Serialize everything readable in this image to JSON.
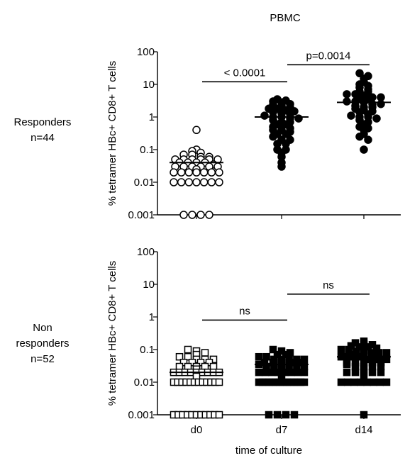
{
  "chart_data": {
    "title": "PBMC",
    "xlabel": "time of culture",
    "type": "scatter",
    "categories": [
      "d0",
      "d7",
      "d14"
    ],
    "panels": [
      {
        "group_label": [
          "Responders",
          "n=44"
        ],
        "ylabel": "% tetramer HBc+ CD8+ T cells",
        "yscale": "log",
        "ylim": [
          0.001,
          100
        ],
        "yticks": [
          "100",
          "10",
          "1",
          "0.1",
          "0.01",
          "0.001"
        ],
        "marker": "circle",
        "marker_filled": [
          false,
          true,
          true
        ],
        "series": [
          {
            "category": "d0",
            "median": 0.04,
            "values": [
              0.4,
              0.1,
              0.09,
              0.08,
              0.07,
              0.07,
              0.06,
              0.06,
              0.05,
              0.05,
              0.05,
              0.05,
              0.05,
              0.05,
              0.04,
              0.04,
              0.04,
              0.04,
              0.035,
              0.03,
              0.03,
              0.03,
              0.03,
              0.03,
              0.03,
              0.025,
              0.02,
              0.02,
              0.02,
              0.02,
              0.02,
              0.02,
              0.02,
              0.01,
              0.01,
              0.01,
              0.01,
              0.01,
              0.01,
              0.01,
              0.001,
              0.001,
              0.001,
              0.001
            ]
          },
          {
            "category": "d7",
            "median": 1,
            "values": [
              3.5,
              3.2,
              3.0,
              2.8,
              2.5,
              2.4,
              2.2,
              2.0,
              1.8,
              1.8,
              1.6,
              1.5,
              1.4,
              1.3,
              1.2,
              1.1,
              1.0,
              1.0,
              0.9,
              0.9,
              0.8,
              0.7,
              0.7,
              0.6,
              0.6,
              0.5,
              0.5,
              0.45,
              0.4,
              0.4,
              0.35,
              0.3,
              0.3,
              0.25,
              0.2,
              0.2,
              0.15,
              0.15,
              0.1,
              0.1,
              0.08,
              0.06,
              0.04,
              0.03
            ]
          },
          {
            "category": "d14",
            "median": 2.8,
            "values": [
              22,
              18,
              15,
              12,
              10,
              9,
              8,
              7,
              6,
              6,
              5,
              5,
              4.5,
              4,
              4,
              3.5,
              3.5,
              3,
              3,
              2.8,
              2.5,
              2.5,
              2.2,
              2,
              2,
              1.8,
              1.6,
              1.5,
              1.4,
              1.2,
              1.1,
              1,
              1,
              0.9,
              0.8,
              0.7,
              0.6,
              0.5,
              0.45,
              0.4,
              0.3,
              0.25,
              0.2,
              0.1
            ]
          }
        ],
        "comparisons": [
          {
            "from": "d0",
            "to": "d7",
            "label": "< 0.0001",
            "y": 12
          },
          {
            "from": "d7",
            "to": "d14",
            "label": "p=0.0014",
            "y": 40
          }
        ]
      },
      {
        "group_label": [
          "Non",
          "responders",
          "n=52"
        ],
        "ylabel": "% tetramer HBc+ CD8+ T cells",
        "yscale": "log",
        "ylim": [
          0.001,
          100
        ],
        "yticks": [
          "100",
          "10",
          "1",
          "0.1",
          "0.01",
          "0.001"
        ],
        "marker": "square",
        "marker_filled": [
          false,
          true,
          true
        ],
        "series": [
          {
            "category": "d0",
            "median": 0.02,
            "values": [
              0.1,
              0.09,
              0.08,
              0.07,
              0.06,
              0.06,
              0.05,
              0.05,
              0.05,
              0.04,
              0.04,
              0.04,
              0.04,
              0.03,
              0.03,
              0.03,
              0.03,
              0.03,
              0.025,
              0.02,
              0.02,
              0.02,
              0.02,
              0.02,
              0.02,
              0.02,
              0.02,
              0.02,
              0.015,
              0.01,
              0.01,
              0.01,
              0.01,
              0.01,
              0.01,
              0.01,
              0.01,
              0.01,
              0.01,
              0.01,
              0.01,
              0.001,
              0.001,
              0.001,
              0.001,
              0.001,
              0.001,
              0.001,
              0.001,
              0.001,
              0.001,
              0.001
            ]
          },
          {
            "category": "d7",
            "median": 0.035,
            "values": [
              0.1,
              0.09,
              0.08,
              0.07,
              0.07,
              0.06,
              0.06,
              0.05,
              0.05,
              0.05,
              0.05,
              0.05,
              0.04,
              0.04,
              0.04,
              0.04,
              0.04,
              0.035,
              0.03,
              0.03,
              0.03,
              0.03,
              0.03,
              0.03,
              0.025,
              0.02,
              0.02,
              0.02,
              0.02,
              0.02,
              0.02,
              0.02,
              0.02,
              0.015,
              0.01,
              0.01,
              0.01,
              0.01,
              0.01,
              0.01,
              0.01,
              0.01,
              0.01,
              0.01,
              0.01,
              0.01,
              0.01,
              0.01,
              0.001,
              0.001,
              0.001,
              0.001
            ]
          },
          {
            "category": "d14",
            "median": 0.06,
            "values": [
              0.18,
              0.16,
              0.15,
              0.14,
              0.13,
              0.12,
              0.12,
              0.11,
              0.1,
              0.1,
              0.09,
              0.09,
              0.08,
              0.08,
              0.08,
              0.07,
              0.07,
              0.07,
              0.06,
              0.06,
              0.06,
              0.06,
              0.05,
              0.05,
              0.05,
              0.05,
              0.04,
              0.04,
              0.04,
              0.04,
              0.04,
              0.035,
              0.03,
              0.03,
              0.03,
              0.03,
              0.025,
              0.02,
              0.02,
              0.02,
              0.02,
              0.02,
              0.015,
              0.01,
              0.01,
              0.01,
              0.01,
              0.01,
              0.01,
              0.01,
              0.01,
              0.001
            ]
          }
        ],
        "comparisons": [
          {
            "from": "d0",
            "to": "d7",
            "label": "ns",
            "y": 0.8
          },
          {
            "from": "d7",
            "to": "d14",
            "label": "ns",
            "y": 5
          }
        ]
      }
    ]
  }
}
